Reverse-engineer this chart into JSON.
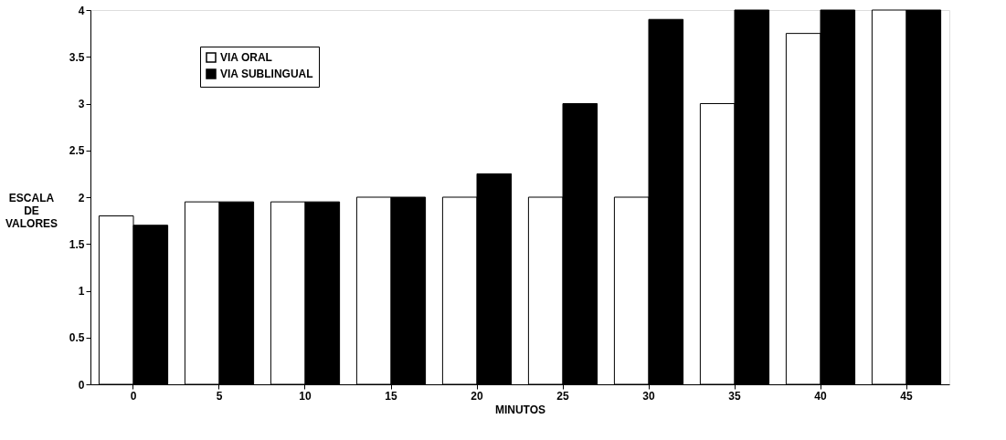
{
  "chart_data": {
    "type": "bar",
    "xlabel": "MINUTOS",
    "ylabel": "ESCALA DE VALORES",
    "categories": [
      "0",
      "5",
      "10",
      "15",
      "20",
      "25",
      "30",
      "35",
      "40",
      "45"
    ],
    "series": [
      {
        "name": "VIA ORAL",
        "color": "#ffffff",
        "values": [
          1.8,
          1.95,
          1.95,
          2,
          2,
          2,
          2,
          3,
          3.75,
          4
        ]
      },
      {
        "name": "VIA SUBLINGUAL",
        "color": "#000000",
        "values": [
          1.7,
          1.95,
          1.95,
          2,
          2.25,
          3,
          3.9,
          4,
          4,
          4
        ]
      }
    ],
    "ylim": [
      0,
      4
    ],
    "yticks": [
      0,
      0.5,
      1,
      1.5,
      2,
      2.5,
      3,
      3.5,
      4
    ],
    "grid": false,
    "legend": "top left"
  }
}
